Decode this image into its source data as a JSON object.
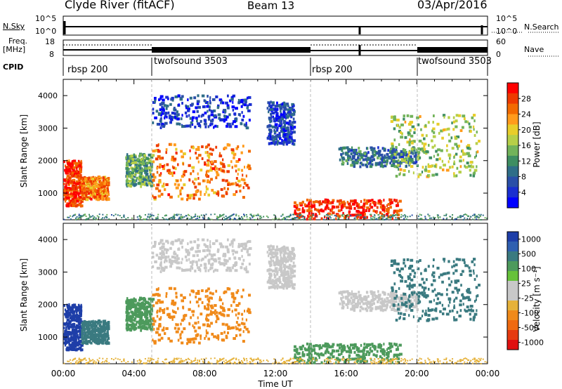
{
  "header": {
    "station": "Clyde River (fitACF)",
    "beam": "Beam 13",
    "date": "03/Apr/2016"
  },
  "noise_panel": {
    "left_label": "N.Sky",
    "left_ticks": [
      "10^5",
      "10^0"
    ],
    "right_ticks": [
      "10^5",
      "10^0"
    ],
    "right_label": "N.Search"
  },
  "freq_panel": {
    "left_label_1": "Freq.",
    "left_label_2": "[MHz]",
    "left_ticks": [
      "18",
      "8"
    ],
    "right_ticks": [
      "60",
      "0"
    ],
    "right_label": "Nave"
  },
  "cpid_panel": {
    "label": "CPID",
    "segments": [
      {
        "name": "rbsp 200",
        "start": 0.0
      },
      {
        "name": "twofsound 3503",
        "start": 5.0
      },
      {
        "name": "rbsp 200",
        "start": 14.0
      },
      {
        "name": "twofsound 3503",
        "start": 20.0
      }
    ]
  },
  "power_colorbar": {
    "title": "Power [dB]",
    "ticks": [
      "28",
      "24",
      "20",
      "16",
      "12",
      "8",
      "4"
    ],
    "colors": [
      "#ff0000",
      "#ee3a00",
      "#f26a00",
      "#ff9b1c",
      "#e8cd2a",
      "#b6cf48",
      "#72b35a",
      "#3e8e62",
      "#2f6e88",
      "#2a4fa8",
      "#1a2fd0",
      "#0000ff"
    ]
  },
  "velocity_colorbar": {
    "title": "Velocity [m s⁻¹]",
    "ticks": [
      "1000",
      "500",
      "100",
      "25",
      "-25",
      "-100",
      "-500",
      "-1000"
    ],
    "colors": [
      "#1e3ea8",
      "#2f5fb0",
      "#3a7a80",
      "#4d9a5c",
      "#66c23a",
      "#c8c8c8",
      "#c8c8c8",
      "#e6b23a",
      "#f08a1a",
      "#ef6a10",
      "#e63a10",
      "#e01010"
    ]
  },
  "axes": {
    "ylabel": "Slant Range [km]",
    "yticks": [
      "4000",
      "3000",
      "2000",
      "1000"
    ],
    "xticks": [
      "00:00",
      "04:00",
      "08:00",
      "12:00",
      "16:00",
      "20:00",
      "00:00"
    ],
    "xlabel": "Time UT"
  },
  "chart_data": {
    "type": "heatmap",
    "x_range_hours": [
      0,
      24
    ],
    "y_range_km": [
      180,
      4500
    ],
    "panels": [
      "Power [dB]",
      "Velocity [m s-1]"
    ],
    "scatter_regions": [
      {
        "t": [
          0.0,
          1.0
        ],
        "r": [
          600,
          2000
        ],
        "power": 28,
        "velocity": 1000
      },
      {
        "t": [
          1.0,
          2.5
        ],
        "r": [
          800,
          1500
        ],
        "power": 24,
        "velocity": 500
      },
      {
        "t": [
          3.5,
          5.0
        ],
        "r": [
          1200,
          2200
        ],
        "power": 12,
        "velocity": 100
      },
      {
        "t": [
          5.0,
          10.5
        ],
        "r": [
          800,
          2500
        ],
        "power": 24,
        "velocity": -100
      },
      {
        "t": [
          5.0,
          10.5
        ],
        "r": [
          3000,
          4000
        ],
        "power": 4,
        "velocity": -25
      },
      {
        "t": [
          11.5,
          13.0
        ],
        "r": [
          2500,
          3800
        ],
        "power": 4,
        "velocity": 25
      },
      {
        "t": [
          13.0,
          19.0
        ],
        "r": [
          200,
          800
        ],
        "power": 28,
        "velocity": 100
      },
      {
        "t": [
          15.5,
          20.0
        ],
        "r": [
          1800,
          2400
        ],
        "power": 8,
        "velocity": 25
      },
      {
        "t": [
          18.5,
          23.5
        ],
        "r": [
          1500,
          3400
        ],
        "power": 16,
        "velocity": 500
      }
    ],
    "ground_scatter_band_km": [
      180,
      350
    ]
  }
}
